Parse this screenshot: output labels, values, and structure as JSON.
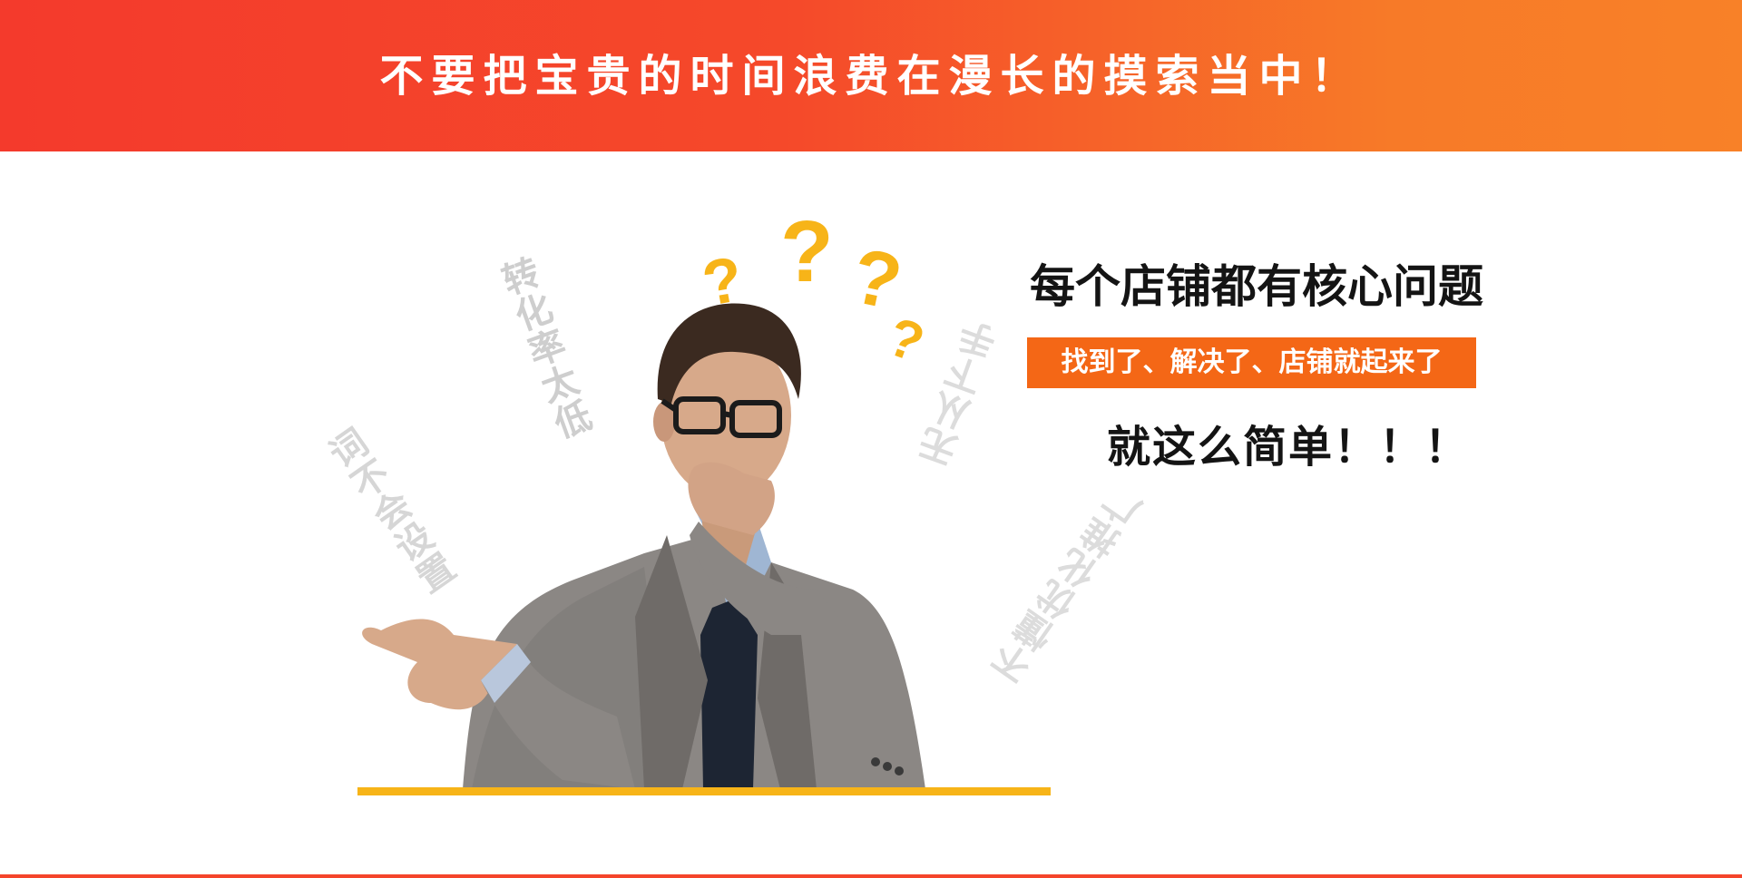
{
  "banner": {
    "headline": "不要把宝贵的时间浪费在漫长的摸索当中！"
  },
  "illustration": {
    "watermarks": [
      "转化率太低",
      "词不会设置",
      "无从下手",
      "不懂优化推广"
    ],
    "question_mark": "?"
  },
  "promo": {
    "title": "每个店铺都有核心问题",
    "tag": "找到了、解决了、店铺就起来了",
    "subtitle": "就这么简单！！！"
  },
  "colors": {
    "banner_start": "#f43a2c",
    "banner_end": "#f88128",
    "accent_orange": "#f46716",
    "question_yellow": "#f7b418"
  }
}
